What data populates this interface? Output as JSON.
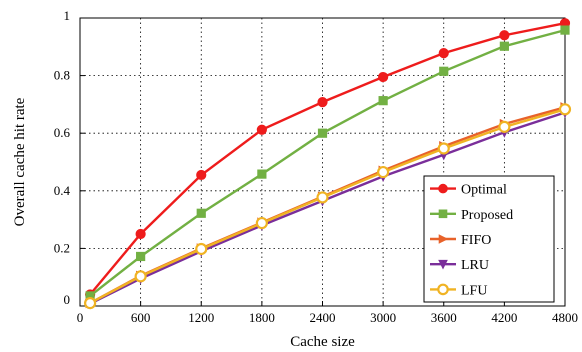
{
  "chart_data": {
    "type": "line",
    "title": "",
    "xlabel": "Cache size",
    "ylabel": "Overall cache hit rate",
    "xlim": [
      0,
      4800
    ],
    "ylim": [
      0,
      1
    ],
    "xticks": [
      0,
      600,
      1200,
      1800,
      2400,
      3000,
      3600,
      4200,
      4800
    ],
    "yticks": [
      0,
      0.2,
      0.4,
      0.6,
      0.8,
      1
    ],
    "ytick_labels": [
      "0",
      "0.2",
      "0.4",
      "0.6",
      "0.8",
      "1"
    ],
    "grid": true,
    "legend_position": "bottom-right",
    "x": [
      100,
      600,
      1200,
      1800,
      2400,
      3000,
      3600,
      4200,
      4800
    ],
    "series": [
      {
        "name": "Optimal",
        "color": "#ee1c1c",
        "marker": "circle",
        "values": [
          0.04,
          0.25,
          0.455,
          0.612,
          0.708,
          0.795,
          0.878,
          0.94,
          0.982
        ]
      },
      {
        "name": "Proposed",
        "color": "#72b043",
        "marker": "square",
        "values": [
          0.035,
          0.172,
          0.322,
          0.458,
          0.6,
          0.713,
          0.815,
          0.902,
          0.958
        ]
      },
      {
        "name": "FIFO",
        "color": "#e8622a",
        "marker": "triangle-right",
        "values": [
          0.01,
          0.105,
          0.2,
          0.29,
          0.38,
          0.47,
          0.555,
          0.632,
          0.69
        ]
      },
      {
        "name": "LRU",
        "color": "#7a2e9a",
        "marker": "triangle-down",
        "values": [
          0.008,
          0.095,
          0.19,
          0.28,
          0.365,
          0.45,
          0.525,
          0.603,
          0.672
        ]
      },
      {
        "name": "LFU",
        "color": "#f0b323",
        "marker": "circle-open",
        "values": [
          0.01,
          0.103,
          0.198,
          0.288,
          0.377,
          0.465,
          0.547,
          0.622,
          0.683
        ]
      }
    ]
  }
}
